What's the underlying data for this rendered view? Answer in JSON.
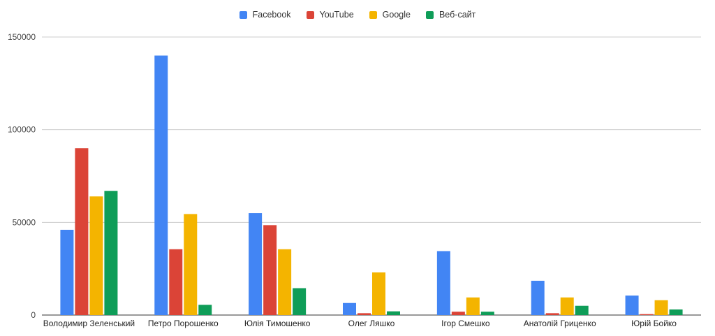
{
  "chart_data": {
    "type": "bar",
    "categories": [
      "Володимир Зеленський",
      "Петро Порошенко",
      "Юлія Тимошенко",
      "Олег Ляшко",
      "Ігор Смешко",
      "Анатолій Гриценко",
      "Юрій Бойко"
    ],
    "series": [
      {
        "name": "Facebook",
        "color": "#4285f4",
        "values": [
          46000,
          140000,
          55000,
          6500,
          34500,
          18500,
          10500
        ]
      },
      {
        "name": "YouTube",
        "color": "#db4437",
        "values": [
          90000,
          35500,
          48500,
          1000,
          1800,
          1000,
          500
        ]
      },
      {
        "name": "Google",
        "color": "#f4b400",
        "values": [
          64000,
          54500,
          35500,
          23000,
          9500,
          9500,
          8000
        ]
      },
      {
        "name": "Веб-сайт",
        "color": "#0f9d58",
        "values": [
          67000,
          5500,
          14500,
          2000,
          1800,
          5000,
          3000
        ]
      }
    ],
    "yticks": [
      "0",
      "50000",
      "100000",
      "150000"
    ],
    "ylim": [
      0,
      150000
    ],
    "grid": true,
    "legend_position": "top"
  }
}
